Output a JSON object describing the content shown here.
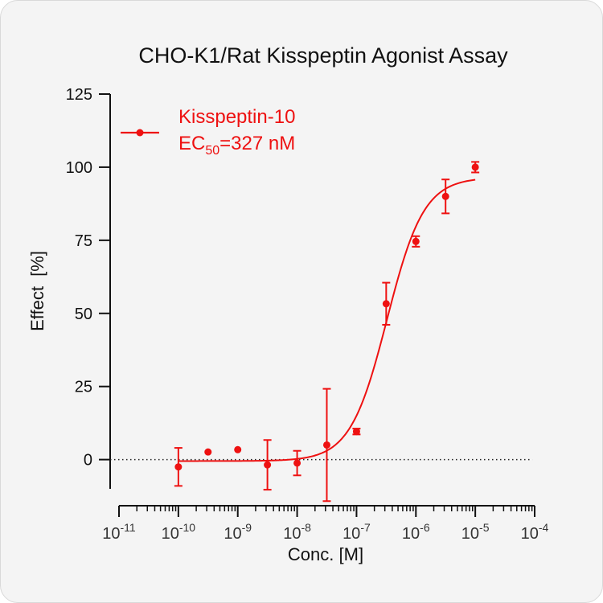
{
  "chart_data": {
    "type": "scatter",
    "title": "CHO-K1/Rat Kisspeptin Agonist Assay",
    "xlabel": "Conc. [M]",
    "ylabel": "Effect  [%]",
    "x_scale": "log",
    "xlim": [
      1e-11,
      0.0001
    ],
    "ylim": [
      -10,
      125
    ],
    "y_ticks": [
      "125",
      "100",
      "75",
      "50",
      "25",
      "0"
    ],
    "x_tick_bases": [
      "10",
      "10",
      "10",
      "10",
      "10",
      "10",
      "10",
      "10"
    ],
    "x_tick_exponents": [
      "-11",
      "-10",
      "-9",
      "-8",
      "-7",
      "-6",
      "-5",
      "-4"
    ],
    "x_tick_values": [
      1e-11,
      1e-10,
      1e-09,
      1e-08,
      1e-07,
      1e-06,
      1e-05,
      0.0001
    ],
    "baseline": 0,
    "grid": false,
    "legend_position": "top-left",
    "colors": {
      "series": "#ee1111",
      "axis": "#111111"
    },
    "series": [
      {
        "name": "Kisspeptin-10",
        "annotation_prefix": "EC",
        "annotation_subscript": "50",
        "annotation_suffix": "=327 nM",
        "points": [
          {
            "x": 1e-10,
            "y": -2.5,
            "err": 6.5
          },
          {
            "x": 3.16e-10,
            "y": 2.6,
            "err": 0
          },
          {
            "x": 1e-09,
            "y": 3.4,
            "err": 0
          },
          {
            "x": 3.16e-09,
            "y": -1.8,
            "err": 8.5
          },
          {
            "x": 1e-08,
            "y": -1.2,
            "err": 4.2
          },
          {
            "x": 3.16e-08,
            "y": 5.0,
            "err": 19.2
          },
          {
            "x": 1e-07,
            "y": 9.6,
            "err": 1.0
          },
          {
            "x": 3.16e-07,
            "y": 53.3,
            "err": 7.2
          },
          {
            "x": 1e-06,
            "y": 74.6,
            "err": 1.8
          },
          {
            "x": 3.16e-06,
            "y": 90.0,
            "err": 5.8
          },
          {
            "x": 1e-05,
            "y": 100.0,
            "err": 1.8
          }
        ],
        "fit": {
          "bottom": -0.5,
          "top": 96.5,
          "ec50": 3.27e-07,
          "hill": 1.4
        }
      }
    ]
  }
}
